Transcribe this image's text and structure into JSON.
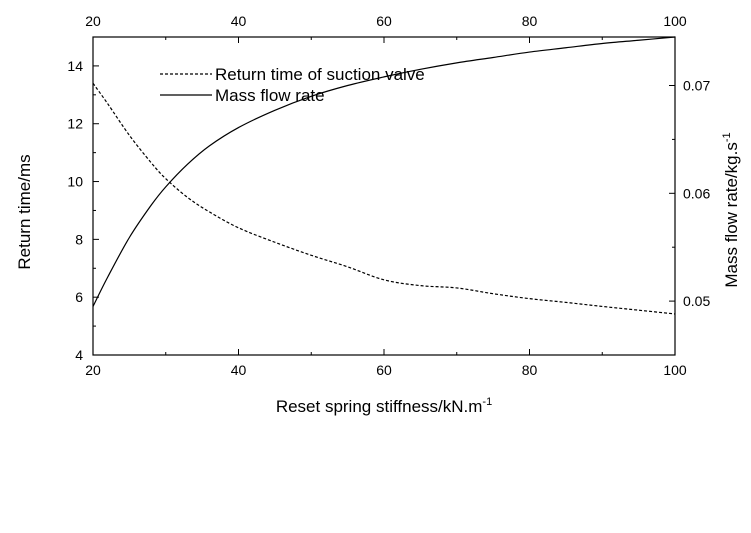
{
  "chart_data": {
    "type": "line",
    "title": "",
    "xlabel": "Reset spring stiffness/kN.m",
    "xlabel_sup": "-1",
    "ylabel_left": "Return time/ms",
    "ylabel_right": "Mass flow rate/kg.s",
    "ylabel_right_sup": "-1",
    "xlim": [
      20,
      100
    ],
    "ylim_left": [
      4,
      15
    ],
    "ylim_right": [
      0.045,
      0.0745
    ],
    "x_ticks": [
      20,
      40,
      60,
      80,
      100
    ],
    "y_left_ticks": [
      4,
      6,
      8,
      10,
      12,
      14
    ],
    "y_right_ticks": [
      0.05,
      0.06,
      0.07
    ],
    "y_right_tick_labels": [
      "0.05",
      "0.06",
      "0.07"
    ],
    "grid": false,
    "legend_position": "top-left",
    "series": [
      {
        "name": "Return time of suction valve",
        "axis": "left",
        "style": "dashed",
        "x": [
          20,
          22,
          25,
          28,
          30,
          33,
          36,
          40,
          45,
          50,
          55,
          60,
          65,
          70,
          75,
          80,
          85,
          90,
          95,
          100
        ],
        "values": [
          13.4,
          12.7,
          11.6,
          10.65,
          10.1,
          9.45,
          8.95,
          8.4,
          7.9,
          7.45,
          7.05,
          6.6,
          6.4,
          6.32,
          6.12,
          5.95,
          5.82,
          5.68,
          5.55,
          5.42
        ]
      },
      {
        "name": "Mass flow rate",
        "axis": "right",
        "style": "solid",
        "x": [
          20,
          22,
          25,
          28,
          30,
          33,
          36,
          40,
          45,
          50,
          55,
          60,
          65,
          70,
          75,
          80,
          85,
          90,
          95,
          100
        ],
        "values": [
          0.0495,
          0.0522,
          0.0559,
          0.0589,
          0.0606,
          0.0627,
          0.0644,
          0.0661,
          0.0677,
          0.069,
          0.07,
          0.0708,
          0.0715,
          0.0721,
          0.0726,
          0.0731,
          0.0735,
          0.0739,
          0.0742,
          0.0745
        ]
      }
    ]
  }
}
